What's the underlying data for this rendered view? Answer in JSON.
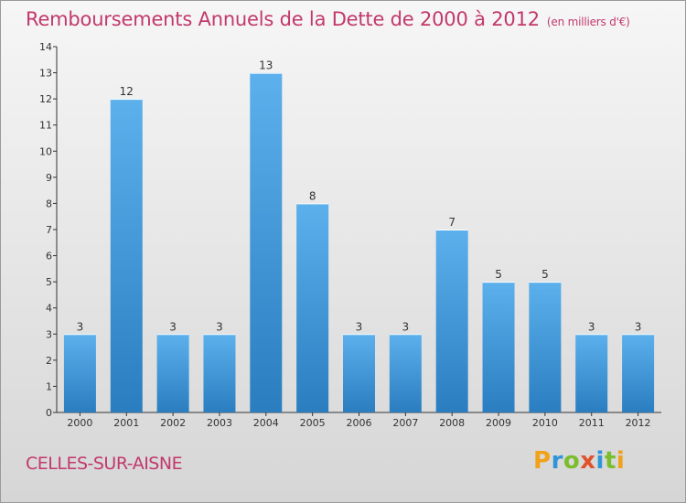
{
  "title": "Remboursements Annuels de la Dette de 2000 à 2012",
  "subtitle": "(en milliers d'€)",
  "commune": "CELLES-SUR-AISNE",
  "logo": "Proxiti",
  "colors": {
    "title": "#c2386c",
    "bar_light": "#5aaeea",
    "bar_dark": "#2a7fc1",
    "axis": "#333333"
  },
  "chart_data": {
    "type": "bar",
    "title": "Remboursements Annuels de la Dette de 2000 à 2012",
    "subtitle": "(en milliers d'€)",
    "categories": [
      "2000",
      "2001",
      "2002",
      "2003",
      "2004",
      "2005",
      "2006",
      "2007",
      "2008",
      "2009",
      "2010",
      "2011",
      "2012"
    ],
    "values": [
      3,
      12,
      3,
      3,
      13,
      8,
      3,
      3,
      7,
      5,
      5,
      3,
      3
    ],
    "ylim": [
      0,
      14
    ],
    "yticks": [
      0,
      1,
      2,
      3,
      4,
      5,
      6,
      7,
      8,
      9,
      10,
      11,
      12,
      13,
      14
    ],
    "grid": false,
    "data_labels": true
  }
}
